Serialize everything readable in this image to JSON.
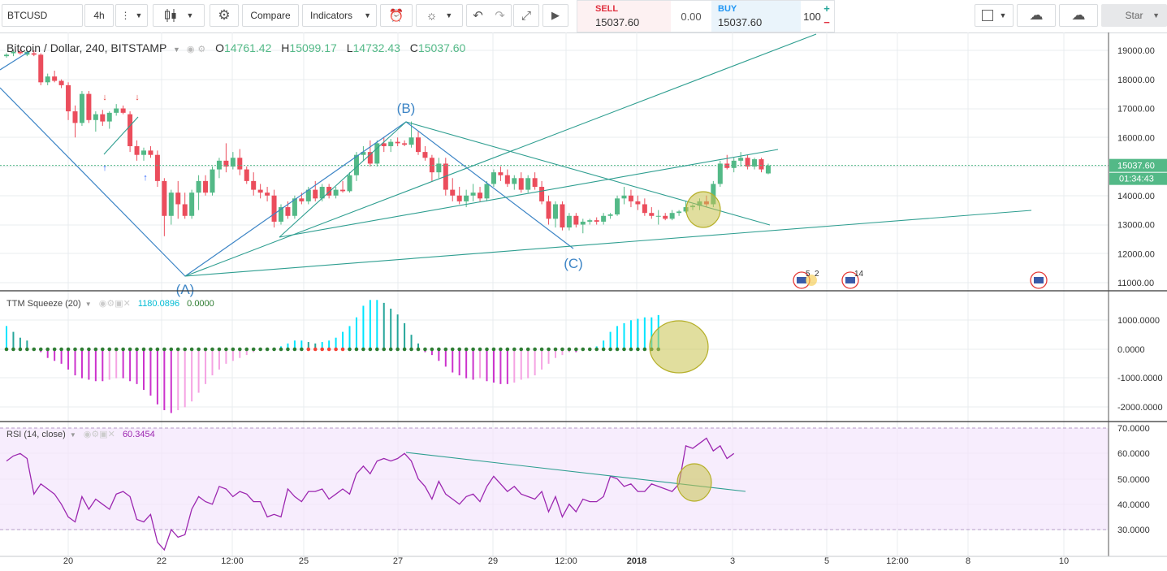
{
  "toolbar": {
    "symbol": "BTCUSD",
    "interval": "4h",
    "compare_label": "Compare",
    "indicators_label": "Indicators",
    "sell_label": "SELL",
    "sell_price": "15037.60",
    "spread": "0.00",
    "buy_label": "BUY",
    "buy_price": "15037.60",
    "quantity": "100",
    "star_label": "Star",
    "plus_icon": "plus-icon",
    "minus_icon": "minus-icon"
  },
  "main_legend": {
    "title": "Bitcoin / Dollar, 240, BITSTAMP",
    "o_label": "O",
    "o_value": "14761.42",
    "h_label": "H",
    "h_value": "15099.17",
    "l_label": "L",
    "l_value": "14732.43",
    "c_label": "C",
    "c_value": "15037.60"
  },
  "squeeze_legend": {
    "title": "TTM Squeeze (20)",
    "value1": "1180.0896",
    "value2": "0.0000"
  },
  "rsi_legend": {
    "title": "RSI (14, close)",
    "value": "60.3454"
  },
  "price_axis": {
    "ticks": [
      "19000.00",
      "18000.00",
      "17000.00",
      "16000.00",
      "15000.00",
      "14000.00",
      "13000.00",
      "12000.00",
      "11000.00"
    ],
    "last_price": "15037.60",
    "countdown": "01:34:43"
  },
  "squeeze_axis": {
    "ticks": [
      "1000.0000",
      "0.0000",
      "-1000.0000",
      "-2000.0000"
    ]
  },
  "rsi_axis": {
    "ticks": [
      "70.0000",
      "60.0000",
      "50.0000",
      "40.0000",
      "30.0000"
    ]
  },
  "time_axis": {
    "labels": [
      "20",
      "22",
      "12:00",
      "25",
      "27",
      "29",
      "12:00",
      "2018",
      "3",
      "5",
      "12:00",
      "8",
      "10"
    ]
  },
  "wave_labels": {
    "a": "(A)",
    "b": "(B)",
    "c": "(C)"
  },
  "event_badges": {
    "first": "5",
    "second": "2",
    "third": "14"
  },
  "colors": {
    "up": "#53b987",
    "down": "#eb4d5c",
    "rsi": "#9c27b0",
    "trend": "#2e9e90",
    "wave": "#3d85c6",
    "highlight": "#b6b02a"
  },
  "chart_data": {
    "type": "candlestick",
    "title": "Bitcoin / Dollar, 240, BITSTAMP",
    "ylim": [
      11000,
      19000
    ],
    "candles": [
      {
        "o": 18800,
        "h": 18900,
        "l": 18750,
        "c": 18850
      },
      {
        "o": 18900,
        "h": 19000,
        "l": 18800,
        "c": 18950
      },
      {
        "o": 18950,
        "h": 19050,
        "l": 18850,
        "c": 18900
      },
      {
        "o": 18850,
        "h": 19000,
        "l": 18800,
        "c": 18950
      },
      {
        "o": 18900,
        "h": 19000,
        "l": 18800,
        "c": 18850
      },
      {
        "o": 18850,
        "h": 18900,
        "l": 17800,
        "c": 17900
      },
      {
        "o": 17900,
        "h": 18200,
        "l": 17800,
        "c": 18100
      },
      {
        "o": 18100,
        "h": 18300,
        "l": 17900,
        "c": 17950
      },
      {
        "o": 17950,
        "h": 18000,
        "l": 17700,
        "c": 17800
      },
      {
        "o": 17800,
        "h": 17900,
        "l": 16600,
        "c": 16900
      },
      {
        "o": 16900,
        "h": 17100,
        "l": 16000,
        "c": 16500
      },
      {
        "o": 16500,
        "h": 17600,
        "l": 16400,
        "c": 17500
      },
      {
        "o": 17500,
        "h": 17600,
        "l": 16500,
        "c": 16600
      },
      {
        "o": 16600,
        "h": 16900,
        "l": 16200,
        "c": 16800
      },
      {
        "o": 16800,
        "h": 16950,
        "l": 16400,
        "c": 16550
      },
      {
        "o": 16550,
        "h": 16900,
        "l": 16300,
        "c": 16850
      },
      {
        "o": 16850,
        "h": 17150,
        "l": 16750,
        "c": 17000
      },
      {
        "o": 17000,
        "h": 17100,
        "l": 16800,
        "c": 16850
      },
      {
        "o": 16800,
        "h": 16900,
        "l": 15500,
        "c": 15700
      },
      {
        "o": 15700,
        "h": 15900,
        "l": 15200,
        "c": 15400
      },
      {
        "o": 15400,
        "h": 15650,
        "l": 15200,
        "c": 15550
      },
      {
        "o": 15550,
        "h": 15700,
        "l": 15300,
        "c": 15400
      },
      {
        "o": 15400,
        "h": 15550,
        "l": 14300,
        "c": 14500
      },
      {
        "o": 14500,
        "h": 14600,
        "l": 12600,
        "c": 13300
      },
      {
        "o": 13300,
        "h": 14200,
        "l": 13000,
        "c": 14100
      },
      {
        "o": 14100,
        "h": 14500,
        "l": 13200,
        "c": 13700
      },
      {
        "o": 13700,
        "h": 14100,
        "l": 13200,
        "c": 13300
      },
      {
        "o": 13300,
        "h": 14200,
        "l": 13200,
        "c": 14100
      },
      {
        "o": 14100,
        "h": 14700,
        "l": 13500,
        "c": 14500
      },
      {
        "o": 14500,
        "h": 14700,
        "l": 14000,
        "c": 14100
      },
      {
        "o": 14100,
        "h": 15000,
        "l": 14000,
        "c": 14900
      },
      {
        "o": 14900,
        "h": 15300,
        "l": 14600,
        "c": 15200
      },
      {
        "o": 15200,
        "h": 15800,
        "l": 14800,
        "c": 15000
      },
      {
        "o": 15000,
        "h": 15500,
        "l": 14900,
        "c": 15300
      },
      {
        "o": 15300,
        "h": 15600,
        "l": 14700,
        "c": 14900
      },
      {
        "o": 14900,
        "h": 15000,
        "l": 14400,
        "c": 14500
      },
      {
        "o": 14500,
        "h": 14800,
        "l": 14000,
        "c": 14200
      },
      {
        "o": 14200,
        "h": 14400,
        "l": 13900,
        "c": 14100
      },
      {
        "o": 14100,
        "h": 14300,
        "l": 13800,
        "c": 14000
      },
      {
        "o": 14000,
        "h": 14200,
        "l": 12900,
        "c": 13100
      },
      {
        "o": 13100,
        "h": 13700,
        "l": 13000,
        "c": 13600
      },
      {
        "o": 13600,
        "h": 13800,
        "l": 13200,
        "c": 13300
      },
      {
        "o": 13300,
        "h": 14000,
        "l": 13200,
        "c": 13900
      },
      {
        "o": 13900,
        "h": 14100,
        "l": 13700,
        "c": 13800
      },
      {
        "o": 13800,
        "h": 14300,
        "l": 13700,
        "c": 14200
      },
      {
        "o": 14200,
        "h": 14500,
        "l": 13800,
        "c": 13900
      },
      {
        "o": 13900,
        "h": 14400,
        "l": 13800,
        "c": 14300
      },
      {
        "o": 14300,
        "h": 14400,
        "l": 13900,
        "c": 14000
      },
      {
        "o": 14000,
        "h": 14300,
        "l": 13900,
        "c": 14200
      },
      {
        "o": 14200,
        "h": 14500,
        "l": 14100,
        "c": 14150
      },
      {
        "o": 14150,
        "h": 14800,
        "l": 14100,
        "c": 14700
      },
      {
        "o": 14700,
        "h": 15500,
        "l": 14500,
        "c": 15400
      },
      {
        "o": 15400,
        "h": 15700,
        "l": 15200,
        "c": 15500
      },
      {
        "o": 15500,
        "h": 15900,
        "l": 15000,
        "c": 15100
      },
      {
        "o": 15100,
        "h": 15900,
        "l": 15000,
        "c": 15800
      },
      {
        "o": 15800,
        "h": 16000,
        "l": 15500,
        "c": 15700
      },
      {
        "o": 15700,
        "h": 15950,
        "l": 15500,
        "c": 15850
      },
      {
        "o": 15850,
        "h": 16000,
        "l": 15700,
        "c": 15800
      },
      {
        "o": 15800,
        "h": 15900,
        "l": 15700,
        "c": 15750
      },
      {
        "o": 15750,
        "h": 16550,
        "l": 15650,
        "c": 16000
      },
      {
        "o": 16000,
        "h": 16200,
        "l": 15400,
        "c": 15500
      },
      {
        "o": 15500,
        "h": 15700,
        "l": 15200,
        "c": 15300
      },
      {
        "o": 15300,
        "h": 15400,
        "l": 14500,
        "c": 14800
      },
      {
        "o": 14800,
        "h": 15300,
        "l": 14600,
        "c": 15100
      },
      {
        "o": 15100,
        "h": 15300,
        "l": 14000,
        "c": 14200
      },
      {
        "o": 14200,
        "h": 14600,
        "l": 13800,
        "c": 14000
      },
      {
        "o": 14000,
        "h": 14300,
        "l": 13700,
        "c": 13800
      },
      {
        "o": 13800,
        "h": 14200,
        "l": 13600,
        "c": 14000
      },
      {
        "o": 14000,
        "h": 14400,
        "l": 13800,
        "c": 14100
      },
      {
        "o": 14100,
        "h": 14300,
        "l": 13800,
        "c": 13900
      },
      {
        "o": 13900,
        "h": 14500,
        "l": 13800,
        "c": 14400
      },
      {
        "o": 14400,
        "h": 14900,
        "l": 14300,
        "c": 14800
      },
      {
        "o": 14800,
        "h": 15000,
        "l": 14500,
        "c": 14700
      },
      {
        "o": 14700,
        "h": 14900,
        "l": 14300,
        "c": 14400
      },
      {
        "o": 14400,
        "h": 14700,
        "l": 14200,
        "c": 14600
      },
      {
        "o": 14600,
        "h": 14800,
        "l": 14100,
        "c": 14200
      },
      {
        "o": 14200,
        "h": 14700,
        "l": 14100,
        "c": 14600
      },
      {
        "o": 14600,
        "h": 14800,
        "l": 14200,
        "c": 14300
      },
      {
        "o": 14300,
        "h": 14500,
        "l": 13700,
        "c": 13800
      },
      {
        "o": 13800,
        "h": 14000,
        "l": 13000,
        "c": 13200
      },
      {
        "o": 13200,
        "h": 13800,
        "l": 12900,
        "c": 13700
      },
      {
        "o": 13700,
        "h": 13800,
        "l": 12800,
        "c": 12900
      },
      {
        "o": 12900,
        "h": 13400,
        "l": 12800,
        "c": 13300
      },
      {
        "o": 13300,
        "h": 13400,
        "l": 12900,
        "c": 13000
      },
      {
        "o": 13000,
        "h": 13200,
        "l": 12700,
        "c": 13100
      },
      {
        "o": 13100,
        "h": 13200,
        "l": 13000,
        "c": 13150
      },
      {
        "o": 13150,
        "h": 13250,
        "l": 13000,
        "c": 13100
      },
      {
        "o": 13100,
        "h": 13400,
        "l": 13000,
        "c": 13300
      },
      {
        "o": 13300,
        "h": 13400,
        "l": 13200,
        "c": 13350
      },
      {
        "o": 13350,
        "h": 14000,
        "l": 13300,
        "c": 13900
      },
      {
        "o": 13900,
        "h": 14300,
        "l": 13700,
        "c": 14000
      },
      {
        "o": 14000,
        "h": 14200,
        "l": 13600,
        "c": 13800
      },
      {
        "o": 13800,
        "h": 14000,
        "l": 13500,
        "c": 13700
      },
      {
        "o": 13700,
        "h": 13900,
        "l": 13300,
        "c": 13400
      },
      {
        "o": 13400,
        "h": 13600,
        "l": 13200,
        "c": 13300
      },
      {
        "o": 13300,
        "h": 13500,
        "l": 13000,
        "c": 13300
      },
      {
        "o": 13300,
        "h": 13400,
        "l": 13150,
        "c": 13200
      },
      {
        "o": 13200,
        "h": 13500,
        "l": 13150,
        "c": 13400
      },
      {
        "o": 13400,
        "h": 13500,
        "l": 13300,
        "c": 13450
      },
      {
        "o": 13450,
        "h": 13800,
        "l": 13400,
        "c": 13600
      },
      {
        "o": 13600,
        "h": 13700,
        "l": 13500,
        "c": 13650
      },
      {
        "o": 13650,
        "h": 13900,
        "l": 13500,
        "c": 13800
      },
      {
        "o": 13800,
        "h": 14000,
        "l": 13600,
        "c": 13700
      },
      {
        "o": 13700,
        "h": 14500,
        "l": 13600,
        "c": 14400
      },
      {
        "o": 14400,
        "h": 15200,
        "l": 14300,
        "c": 15100
      },
      {
        "o": 15100,
        "h": 15400,
        "l": 14900,
        "c": 14950
      },
      {
        "o": 14950,
        "h": 15300,
        "l": 14800,
        "c": 15200
      },
      {
        "o": 15200,
        "h": 15500,
        "l": 15000,
        "c": 15300
      },
      {
        "o": 15300,
        "h": 15400,
        "l": 14900,
        "c": 15000
      },
      {
        "o": 15000,
        "h": 15300,
        "l": 14900,
        "c": 15250
      },
      {
        "o": 15250,
        "h": 15300,
        "l": 14800,
        "c": 14900
      },
      {
        "o": 14761.42,
        "h": 15099.17,
        "l": 14732.43,
        "c": 15037.6
      }
    ],
    "ttm_squeeze": {
      "histogram": [
        800,
        600,
        400,
        300,
        0,
        -100,
        -300,
        -400,
        -500,
        -700,
        -900,
        -1000,
        -1050,
        -1100,
        -1100,
        -1050,
        -1000,
        -1000,
        -1100,
        -1200,
        -1400,
        -1600,
        -1900,
        -2100,
        -2200,
        -2100,
        -2000,
        -1800,
        -1500,
        -1200,
        -900,
        -700,
        -500,
        -400,
        -300,
        -200,
        -100,
        -50,
        0,
        50,
        100,
        200,
        300,
        300,
        250,
        200,
        250,
        300,
        400,
        600,
        800,
        1100,
        1500,
        1700,
        1700,
        1600,
        1400,
        1200,
        900,
        500,
        200,
        -100,
        -200,
        -400,
        -600,
        -800,
        -900,
        -1000,
        -1050,
        -1000,
        -1100,
        -1150,
        -1200,
        -1200,
        -1150,
        -1050,
        -1000,
        -900,
        -700,
        -500,
        -300,
        -200,
        -100,
        -100,
        -50,
        0,
        100,
        300,
        600,
        800,
        900,
        1000,
        1050,
        1100,
        1100,
        1180
      ],
      "squeeze_on": [
        false,
        false,
        false,
        false,
        false,
        false,
        false,
        false,
        false,
        false,
        false,
        false,
        false,
        false,
        false,
        false,
        false,
        false,
        false,
        false,
        false,
        false,
        false,
        false,
        false,
        false,
        false,
        false,
        false,
        false,
        false,
        false,
        false,
        false,
        false,
        false,
        false,
        false,
        false,
        false,
        false,
        false,
        false,
        false,
        true,
        true,
        true,
        true,
        true,
        true,
        false,
        false,
        false,
        false,
        false,
        false,
        false,
        false,
        false,
        false,
        false,
        false,
        false,
        false,
        false,
        false,
        false,
        false,
        false,
        false,
        false,
        false,
        false,
        false,
        false,
        false,
        false,
        false,
        false,
        false,
        false,
        false,
        false,
        false,
        false,
        false,
        false,
        false,
        false,
        false,
        false,
        false,
        false,
        false,
        false,
        false
      ]
    },
    "rsi": {
      "ylim": [
        30,
        70
      ],
      "values": [
        57,
        59,
        60,
        58,
        44,
        48,
        46,
        44,
        40,
        35,
        33,
        43,
        38,
        42,
        40,
        38,
        44,
        45,
        43,
        34,
        33,
        36,
        25,
        22,
        30,
        27,
        28,
        38,
        43,
        41,
        40,
        47,
        46,
        43,
        45,
        44,
        41,
        41,
        35,
        36,
        35,
        46,
        43,
        41,
        45,
        45,
        46,
        42,
        44,
        46,
        44,
        52,
        55,
        52,
        57,
        58,
        57,
        58,
        60,
        57,
        50,
        47,
        42,
        49,
        44,
        42,
        40,
        43,
        44,
        41,
        47,
        51,
        48,
        45,
        47,
        44,
        43,
        42,
        45,
        37,
        43,
        35,
        40,
        37,
        42,
        41,
        41,
        43,
        51,
        50,
        47,
        48,
        45,
        45,
        48,
        47,
        46,
        45,
        48,
        63,
        62,
        64,
        66,
        61,
        63,
        58,
        60
      ]
    },
    "trendlines_note": "wave A-B-C with fan trendlines"
  }
}
